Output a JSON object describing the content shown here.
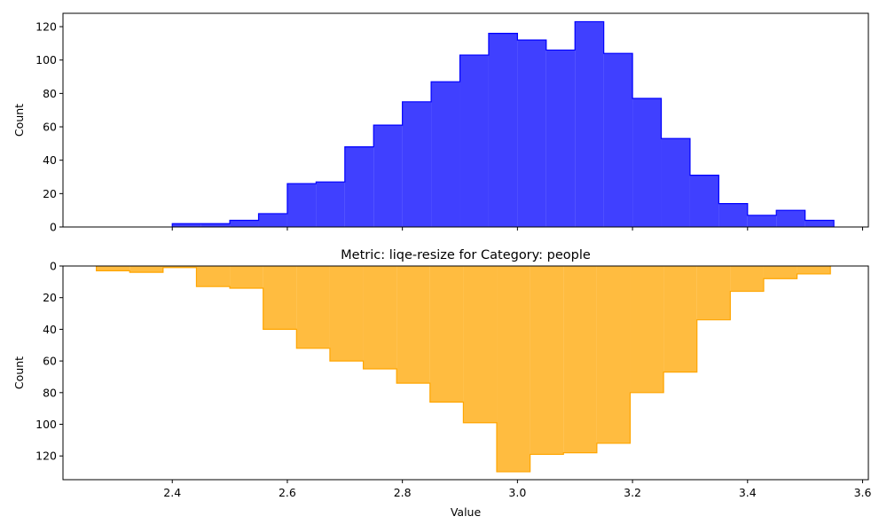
{
  "chart_data": [
    {
      "type": "histogram",
      "title": "",
      "xlabel": "",
      "ylabel": "Count",
      "color": "#0000ff",
      "fill_opacity": 0.75,
      "xlim": [
        2.21,
        3.61
      ],
      "ylim": [
        0,
        128
      ],
      "yticks": [
        0,
        20,
        40,
        60,
        80,
        100,
        120
      ],
      "xticks": [
        2.4,
        2.6,
        2.8,
        3.0,
        3.2,
        3.4,
        3.6
      ],
      "x_tick_labels_visible": false,
      "inverted": false,
      "bin_edges": [
        2.4,
        2.45,
        2.5,
        2.55,
        2.6,
        2.65,
        2.7,
        2.75,
        2.8,
        2.85,
        2.9,
        2.95,
        3.0,
        3.05,
        3.1,
        3.15,
        3.2,
        3.25,
        3.3,
        3.35,
        3.4,
        3.45,
        3.5,
        3.55
      ],
      "counts": [
        2,
        2,
        4,
        8,
        26,
        27,
        48,
        61,
        75,
        87,
        103,
        116,
        112,
        106,
        123,
        104,
        77,
        53,
        31,
        14,
        7,
        10,
        4
      ]
    },
    {
      "type": "histogram",
      "title": "Metric: liqe-resize for Category: people",
      "xlabel": "Value",
      "ylabel": "Count",
      "color": "#ffa500",
      "fill_opacity": 0.75,
      "xlim": [
        2.21,
        3.61
      ],
      "ylim": [
        0,
        135
      ],
      "yticks": [
        0,
        20,
        40,
        60,
        80,
        100,
        120
      ],
      "xticks": [
        2.4,
        2.6,
        2.8,
        3.0,
        3.2,
        3.4,
        3.6
      ],
      "x_tick_labels_visible": true,
      "inverted": true,
      "bin_edges": [
        2.268,
        2.326,
        2.384,
        2.442,
        2.5,
        2.558,
        2.616,
        2.674,
        2.732,
        2.79,
        2.848,
        2.906,
        2.964,
        3.022,
        3.08,
        3.138,
        3.196,
        3.254,
        3.312,
        3.37,
        3.428,
        3.486,
        3.544
      ],
      "counts": [
        3,
        4,
        1,
        13,
        14,
        40,
        52,
        60,
        65,
        74,
        86,
        99,
        130,
        119,
        118,
        112,
        80,
        67,
        34,
        16,
        8,
        5
      ]
    }
  ]
}
